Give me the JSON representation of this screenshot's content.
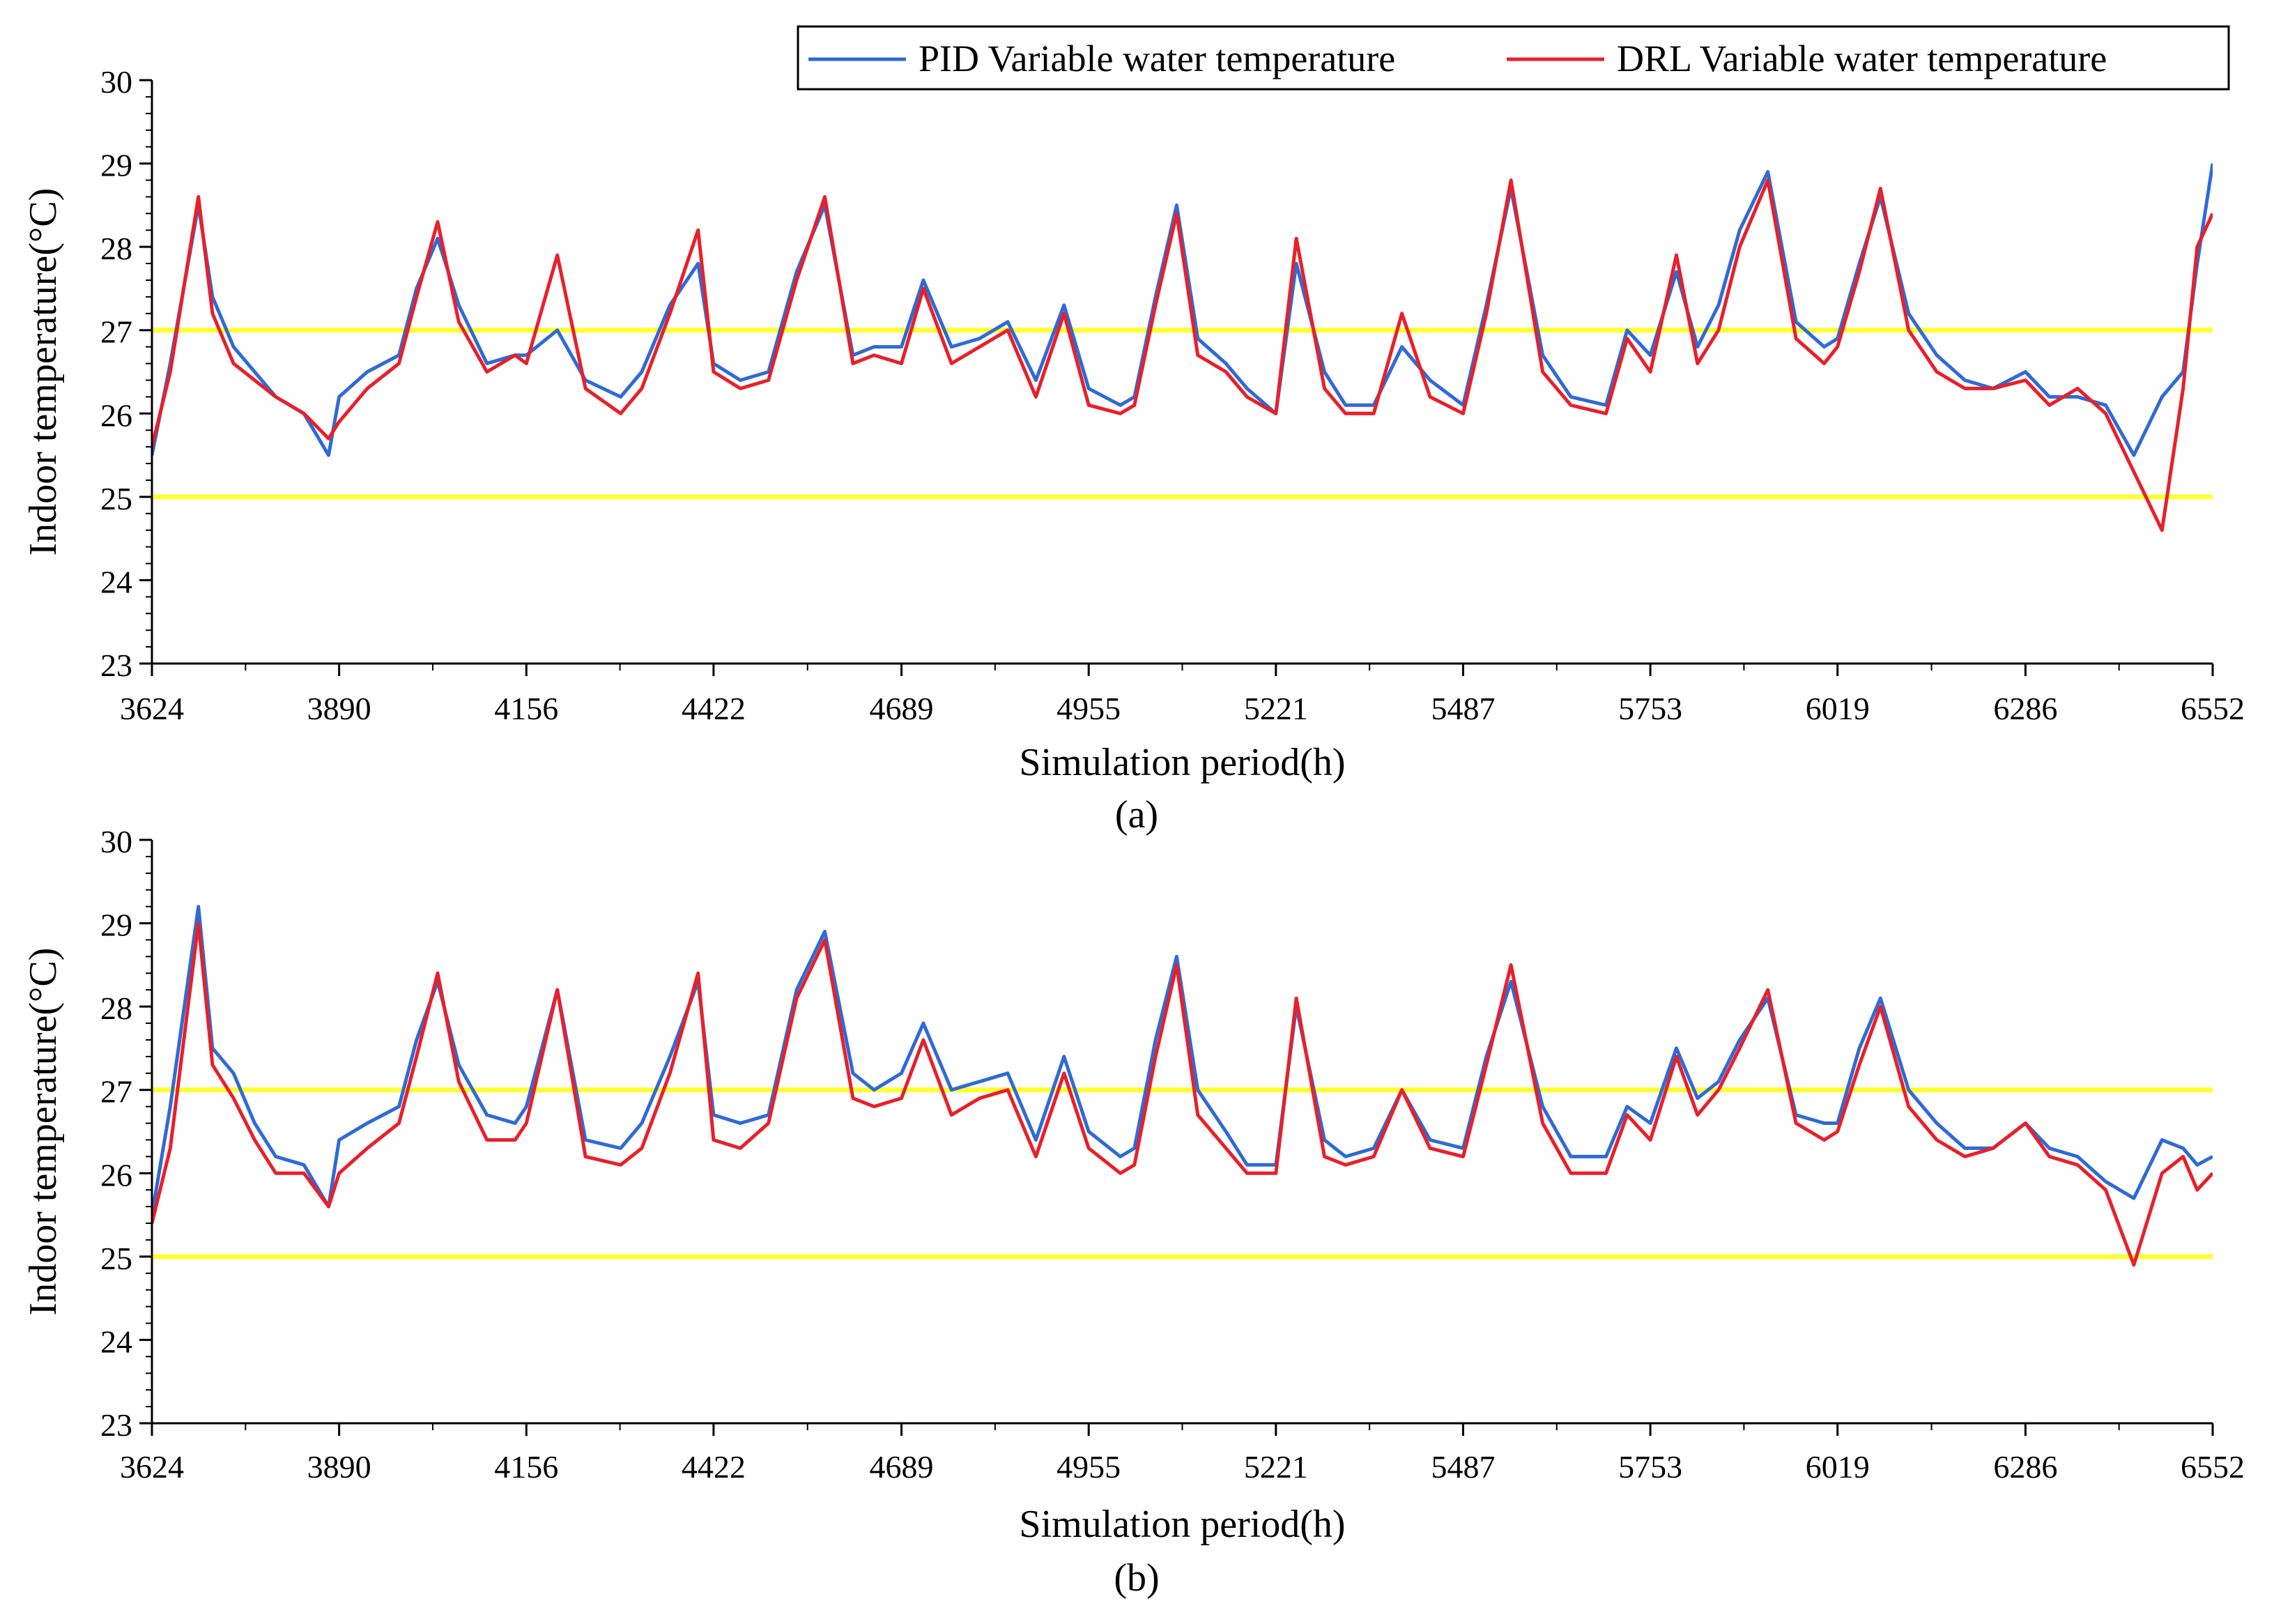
{
  "chart_data": [
    {
      "panel": "(a)",
      "type": "line",
      "title": "",
      "xlabel": "Simulation period(h)",
      "ylabel": "Indoor temperature(°C)",
      "xlim": [
        3624,
        6552
      ],
      "ylim": [
        23,
        30
      ],
      "xticks": [
        "3624",
        "3890",
        "4156",
        "4422",
        "4689",
        "4955",
        "5221",
        "5487",
        "5753",
        "6019",
        "6286",
        "6552"
      ],
      "yticks": [
        "23",
        "24",
        "25",
        "26",
        "27",
        "28",
        "29",
        "30"
      ],
      "grid": false,
      "legend": {
        "position": "top-right",
        "entries": [
          "PID Variable water temperature",
          "DRL Variable water temperature"
        ]
      },
      "reference_lines": [
        {
          "y": 27,
          "color": "#ffff33",
          "label": ""
        },
        {
          "y": 25,
          "color": "#ffff33",
          "label": ""
        }
      ],
      "series": [
        {
          "name": "PID Variable water temperature",
          "color": "#2f6ad6",
          "x": [
            3624,
            3650,
            3690,
            3710,
            3740,
            3770,
            3800,
            3840,
            3875,
            3890,
            3930,
            3975,
            4000,
            4030,
            4060,
            4100,
            4140,
            4156,
            4200,
            4240,
            4290,
            4320,
            4360,
            4400,
            4422,
            4460,
            4500,
            4540,
            4580,
            4620,
            4650,
            4689,
            4720,
            4760,
            4800,
            4840,
            4880,
            4920,
            4955,
            5000,
            5020,
            5050,
            5080,
            5110,
            5150,
            5180,
            5221,
            5250,
            5290,
            5320,
            5360,
            5400,
            5440,
            5487,
            5520,
            5555,
            5600,
            5640,
            5690,
            5720,
            5753,
            5790,
            5820,
            5850,
            5880,
            5920,
            5960,
            6000,
            6019,
            6050,
            6080,
            6120,
            6160,
            6200,
            6240,
            6286,
            6320,
            6360,
            6400,
            6440,
            6480,
            6510,
            6530,
            6552
          ],
          "values": [
            25.5,
            26.6,
            28.5,
            27.4,
            26.8,
            26.5,
            26.2,
            26.0,
            25.5,
            26.2,
            26.5,
            26.7,
            27.5,
            28.1,
            27.3,
            26.6,
            26.7,
            26.7,
            27.0,
            26.4,
            26.2,
            26.5,
            27.3,
            27.8,
            26.6,
            26.4,
            26.5,
            27.7,
            28.5,
            26.7,
            26.8,
            26.8,
            27.6,
            26.8,
            26.9,
            27.1,
            26.4,
            27.3,
            26.3,
            26.1,
            26.2,
            27.4,
            28.5,
            26.9,
            26.6,
            26.3,
            26.0,
            27.8,
            26.5,
            26.1,
            26.1,
            26.8,
            26.4,
            26.1,
            27.3,
            28.7,
            26.7,
            26.2,
            26.1,
            27.0,
            26.7,
            27.7,
            26.8,
            27.3,
            28.2,
            28.9,
            27.1,
            26.8,
            26.9,
            27.8,
            28.6,
            27.2,
            26.7,
            26.4,
            26.3,
            26.5,
            26.2,
            26.2,
            26.1,
            25.5,
            26.2,
            26.5,
            27.8,
            29.0
          ]
        },
        {
          "name": "DRL Variable water temperature",
          "color": "#e8202a",
          "x": [
            3624,
            3650,
            3690,
            3710,
            3740,
            3770,
            3800,
            3840,
            3875,
            3890,
            3930,
            3975,
            4000,
            4030,
            4060,
            4100,
            4140,
            4156,
            4200,
            4240,
            4290,
            4320,
            4360,
            4400,
            4422,
            4460,
            4500,
            4540,
            4580,
            4620,
            4650,
            4689,
            4720,
            4760,
            4800,
            4840,
            4880,
            4920,
            4955,
            5000,
            5020,
            5050,
            5080,
            5110,
            5150,
            5180,
            5221,
            5250,
            5290,
            5320,
            5360,
            5400,
            5440,
            5487,
            5520,
            5555,
            5600,
            5640,
            5690,
            5720,
            5753,
            5790,
            5820,
            5850,
            5880,
            5920,
            5960,
            6000,
            6019,
            6050,
            6080,
            6120,
            6160,
            6200,
            6240,
            6286,
            6320,
            6360,
            6400,
            6440,
            6480,
            6510,
            6530,
            6552
          ],
          "values": [
            25.6,
            26.5,
            28.6,
            27.2,
            26.6,
            26.4,
            26.2,
            26.0,
            25.7,
            25.9,
            26.3,
            26.6,
            27.4,
            28.3,
            27.1,
            26.5,
            26.7,
            26.6,
            27.9,
            26.3,
            26.0,
            26.3,
            27.2,
            28.2,
            26.5,
            26.3,
            26.4,
            27.6,
            28.6,
            26.6,
            26.7,
            26.6,
            27.5,
            26.6,
            26.8,
            27.0,
            26.2,
            27.2,
            26.1,
            26.0,
            26.1,
            27.3,
            28.4,
            26.7,
            26.5,
            26.2,
            26.0,
            28.1,
            26.3,
            26.0,
            26.0,
            27.2,
            26.2,
            26.0,
            27.2,
            28.8,
            26.5,
            26.1,
            26.0,
            26.9,
            26.5,
            27.9,
            26.6,
            27.0,
            28.0,
            28.8,
            26.9,
            26.6,
            26.8,
            27.7,
            28.7,
            27.0,
            26.5,
            26.3,
            26.3,
            26.4,
            26.1,
            26.3,
            26.0,
            25.3,
            24.6,
            26.3,
            28.0,
            28.4
          ]
        }
      ]
    },
    {
      "panel": "(b)",
      "type": "line",
      "title": "",
      "xlabel": "Simulation period(h)",
      "ylabel": "Indoor temperature(°C)",
      "xlim": [
        3624,
        6552
      ],
      "ylim": [
        23,
        30
      ],
      "xticks": [
        "3624",
        "3890",
        "4156",
        "4422",
        "4689",
        "4955",
        "5221",
        "5487",
        "5753",
        "6019",
        "6286",
        "6552"
      ],
      "yticks": [
        "23",
        "24",
        "25",
        "26",
        "27",
        "28",
        "29",
        "30"
      ],
      "grid": false,
      "legend": null,
      "reference_lines": [
        {
          "y": 27,
          "color": "#ffff33",
          "label": ""
        },
        {
          "y": 25,
          "color": "#ffff33",
          "label": ""
        }
      ],
      "series": [
        {
          "name": "PID Variable water temperature",
          "color": "#2f6ad6",
          "x": [
            3624,
            3650,
            3690,
            3710,
            3740,
            3770,
            3800,
            3840,
            3875,
            3890,
            3930,
            3975,
            4000,
            4030,
            4060,
            4100,
            4140,
            4156,
            4200,
            4240,
            4290,
            4320,
            4360,
            4400,
            4422,
            4460,
            4500,
            4540,
            4580,
            4620,
            4650,
            4689,
            4720,
            4760,
            4800,
            4840,
            4880,
            4920,
            4955,
            5000,
            5020,
            5050,
            5080,
            5110,
            5150,
            5180,
            5221,
            5250,
            5290,
            5320,
            5360,
            5400,
            5440,
            5487,
            5520,
            5555,
            5600,
            5640,
            5690,
            5720,
            5753,
            5790,
            5820,
            5850,
            5880,
            5920,
            5960,
            6000,
            6019,
            6050,
            6080,
            6120,
            6160,
            6200,
            6240,
            6286,
            6320,
            6360,
            6400,
            6440,
            6480,
            6510,
            6530,
            6552
          ],
          "values": [
            25.5,
            26.8,
            29.2,
            27.5,
            27.2,
            26.6,
            26.2,
            26.1,
            25.6,
            26.4,
            26.6,
            26.8,
            27.6,
            28.3,
            27.3,
            26.7,
            26.6,
            26.8,
            28.2,
            26.4,
            26.3,
            26.6,
            27.4,
            28.3,
            26.7,
            26.6,
            26.7,
            28.2,
            28.9,
            27.2,
            27.0,
            27.2,
            27.8,
            27.0,
            27.1,
            27.2,
            26.4,
            27.4,
            26.5,
            26.2,
            26.3,
            27.6,
            28.6,
            27.0,
            26.5,
            26.1,
            26.1,
            28.0,
            26.4,
            26.2,
            26.3,
            27.0,
            26.4,
            26.3,
            27.4,
            28.3,
            26.8,
            26.2,
            26.2,
            26.8,
            26.6,
            27.5,
            26.9,
            27.1,
            27.6,
            28.1,
            26.7,
            26.6,
            26.6,
            27.5,
            28.1,
            27.0,
            26.6,
            26.3,
            26.3,
            26.6,
            26.3,
            26.2,
            25.9,
            25.7,
            26.4,
            26.3,
            26.1,
            26.2
          ]
        },
        {
          "name": "DRL Variable water temperature",
          "color": "#e8202a",
          "x": [
            3624,
            3650,
            3690,
            3710,
            3740,
            3770,
            3800,
            3840,
            3875,
            3890,
            3930,
            3975,
            4000,
            4030,
            4060,
            4100,
            4140,
            4156,
            4200,
            4240,
            4290,
            4320,
            4360,
            4400,
            4422,
            4460,
            4500,
            4540,
            4580,
            4620,
            4650,
            4689,
            4720,
            4760,
            4800,
            4840,
            4880,
            4920,
            4955,
            5000,
            5020,
            5050,
            5080,
            5110,
            5150,
            5180,
            5221,
            5250,
            5290,
            5320,
            5360,
            5400,
            5440,
            5487,
            5520,
            5555,
            5600,
            5640,
            5690,
            5720,
            5753,
            5790,
            5820,
            5850,
            5880,
            5920,
            5960,
            6000,
            6019,
            6050,
            6080,
            6120,
            6160,
            6200,
            6240,
            6286,
            6320,
            6360,
            6400,
            6440,
            6480,
            6510,
            6530,
            6552
          ],
          "values": [
            25.4,
            26.3,
            29.0,
            27.3,
            26.9,
            26.4,
            26.0,
            26.0,
            25.6,
            26.0,
            26.3,
            26.6,
            27.4,
            28.4,
            27.1,
            26.4,
            26.4,
            26.6,
            28.2,
            26.2,
            26.1,
            26.3,
            27.2,
            28.4,
            26.4,
            26.3,
            26.6,
            28.1,
            28.8,
            26.9,
            26.8,
            26.9,
            27.6,
            26.7,
            26.9,
            27.0,
            26.2,
            27.2,
            26.3,
            26.0,
            26.1,
            27.4,
            28.5,
            26.7,
            26.3,
            26.0,
            26.0,
            28.1,
            26.2,
            26.1,
            26.2,
            27.0,
            26.3,
            26.2,
            27.3,
            28.5,
            26.6,
            26.0,
            26.0,
            26.7,
            26.4,
            27.4,
            26.7,
            27.0,
            27.5,
            28.2,
            26.6,
            26.4,
            26.5,
            27.3,
            28.0,
            26.8,
            26.4,
            26.2,
            26.3,
            26.6,
            26.2,
            26.1,
            25.8,
            24.9,
            26.0,
            26.2,
            25.8,
            26.0
          ]
        }
      ]
    }
  ],
  "captions": {
    "a": "(a)",
    "b": "(b)"
  }
}
